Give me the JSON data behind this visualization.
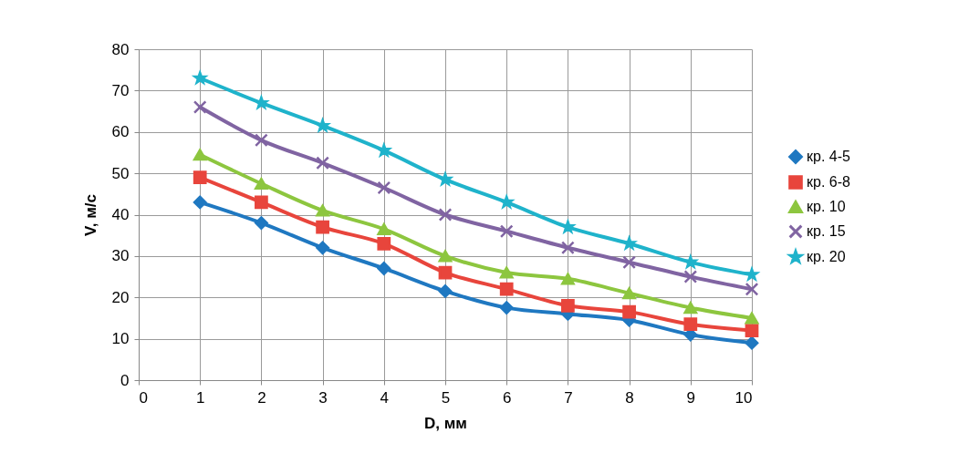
{
  "chart_data": {
    "type": "line",
    "xlabel": "D, мм",
    "ylabel": "V, м/с",
    "x": [
      1,
      2,
      3,
      4,
      5,
      6,
      7,
      8,
      9,
      10
    ],
    "xlim": [
      0,
      10
    ],
    "xticks": [
      0,
      1,
      2,
      3,
      4,
      5,
      6,
      7,
      8,
      9,
      10
    ],
    "ylim": [
      0,
      80
    ],
    "yticks": [
      0,
      10,
      20,
      30,
      40,
      50,
      60,
      70,
      80
    ],
    "grid": true,
    "legend": "right",
    "series": [
      {
        "name": "кр. 4-5",
        "color": "#1f78c1",
        "marker": "diamond",
        "values": [
          43,
          38,
          32,
          27,
          21.5,
          17.5,
          16,
          14.5,
          11,
          9
        ]
      },
      {
        "name": "кр. 6-8",
        "color": "#e8453c",
        "marker": "square",
        "values": [
          49,
          43,
          37,
          33,
          26,
          22,
          18,
          16.5,
          13.5,
          12
        ]
      },
      {
        "name": "кр. 10",
        "color": "#8dc63f",
        "marker": "triangle",
        "values": [
          54.5,
          47.5,
          41,
          36.5,
          30,
          26,
          24.5,
          21,
          17.5,
          15
        ]
      },
      {
        "name": "кр. 15",
        "color": "#8064a2",
        "marker": "cross",
        "values": [
          66,
          58,
          52.5,
          46.5,
          40,
          36,
          32,
          28.5,
          25,
          22
        ]
      },
      {
        "name": "кр. 20",
        "color": "#1fb3cb",
        "marker": "star",
        "values": [
          73,
          67,
          61.5,
          55.5,
          48.5,
          43,
          37,
          33,
          28.5,
          25.5
        ]
      }
    ]
  }
}
